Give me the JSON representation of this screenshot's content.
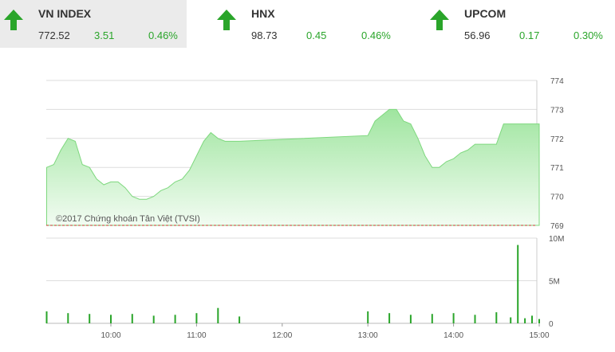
{
  "indices": [
    {
      "name": "VN INDEX",
      "price": "772.52",
      "change": "3.51",
      "percent": "0.46%",
      "direction": "up"
    },
    {
      "name": "HNX",
      "price": "98.73",
      "change": "0.45",
      "percent": "0.46%",
      "direction": "up"
    },
    {
      "name": "UPCOM",
      "price": "56.96",
      "change": "0.17",
      "percent": "0.30%",
      "direction": "up"
    }
  ],
  "colors": {
    "up": "#2aa52a",
    "area_top": "#9fe59f",
    "area_bottom": "#f2fcf2",
    "line": "#7ed87e",
    "reference": "#c0392b",
    "volume": "#2aa52a"
  },
  "chart_data": [
    {
      "type": "area",
      "title": "",
      "watermark": "©2017 Chứng khoán Tân Việt (TVSI)",
      "x_tick_labels": [
        "10:00",
        "11:00",
        "12:00",
        "13:00",
        "14:00",
        "15:00"
      ],
      "y_tick_labels": [
        "774",
        "773",
        "772",
        "771",
        "770",
        "769"
      ],
      "ylim": [
        769,
        774
      ],
      "reference_line": 769.0,
      "grid": true,
      "x": [
        "09:15",
        "09:20",
        "09:25",
        "09:30",
        "09:35",
        "09:40",
        "09:45",
        "09:50",
        "09:55",
        "10:00",
        "10:05",
        "10:10",
        "10:15",
        "10:20",
        "10:25",
        "10:30",
        "10:35",
        "10:40",
        "10:45",
        "10:50",
        "10:55",
        "11:00",
        "11:05",
        "11:10",
        "11:15",
        "11:20",
        "11:25",
        "11:30",
        "13:00",
        "13:05",
        "13:10",
        "13:15",
        "13:20",
        "13:25",
        "13:30",
        "13:35",
        "13:40",
        "13:45",
        "13:50",
        "13:55",
        "14:00",
        "14:05",
        "14:10",
        "14:15",
        "14:20",
        "14:25",
        "14:30",
        "14:35",
        "14:40",
        "14:45",
        "14:50",
        "14:55",
        "15:00"
      ],
      "y": [
        771.0,
        771.1,
        771.6,
        772.0,
        771.9,
        771.1,
        771.0,
        770.6,
        770.4,
        770.5,
        770.5,
        770.3,
        770.0,
        769.9,
        769.9,
        770.0,
        770.2,
        770.3,
        770.5,
        770.6,
        770.9,
        771.4,
        771.9,
        772.2,
        772.0,
        771.9,
        771.9,
        771.9,
        772.1,
        772.6,
        772.8,
        773.0,
        773.0,
        772.6,
        772.5,
        772.0,
        771.4,
        771.0,
        771.0,
        771.2,
        771.3,
        771.5,
        771.6,
        771.8,
        771.8,
        771.8,
        771.8,
        772.5,
        772.5,
        772.5,
        772.5,
        772.5,
        772.5
      ]
    },
    {
      "type": "bar",
      "title": "",
      "y_tick_labels": [
        "10M",
        "5M",
        "0"
      ],
      "ylim": [
        0,
        10000000
      ],
      "x": [
        "09:15",
        "09:30",
        "09:45",
        "10:00",
        "10:15",
        "10:30",
        "10:45",
        "11:00",
        "11:15",
        "11:30",
        "13:00",
        "13:15",
        "13:30",
        "13:45",
        "14:00",
        "14:15",
        "14:30",
        "14:40",
        "14:45",
        "14:50",
        "14:55",
        "15:00"
      ],
      "values": [
        1400000,
        1200000,
        1100000,
        1000000,
        1100000,
        900000,
        1000000,
        1200000,
        1800000,
        800000,
        1400000,
        1200000,
        1000000,
        1100000,
        1200000,
        1000000,
        1300000,
        700000,
        9200000,
        600000,
        900000,
        500000
      ]
    }
  ]
}
